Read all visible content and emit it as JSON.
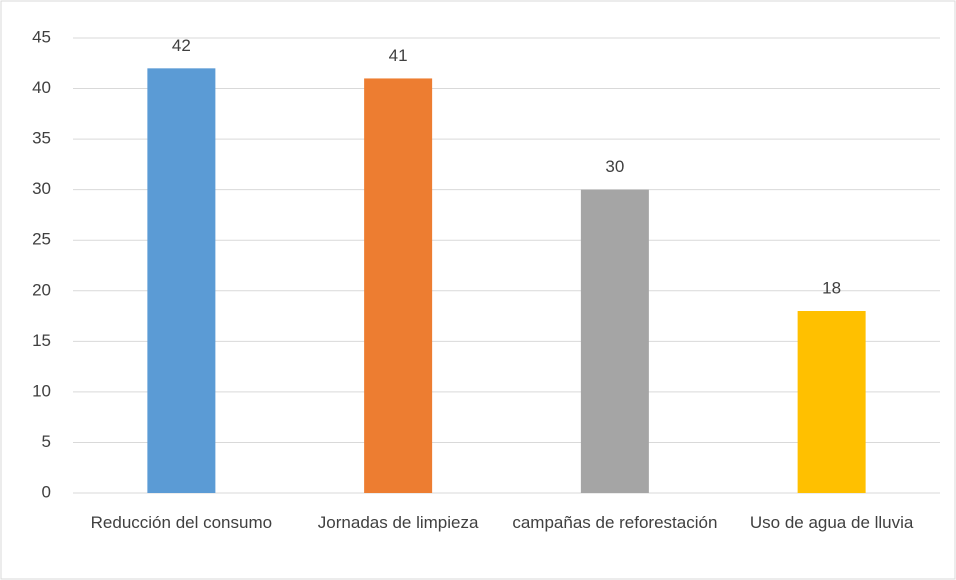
{
  "chart_data": {
    "type": "bar",
    "categories": [
      "Reducción del consumo",
      "Jornadas de limpieza",
      "campañas de reforestación",
      "Uso de agua de lluvia"
    ],
    "values": [
      42,
      41,
      30,
      18
    ],
    "colors": [
      "#5b9bd5",
      "#ed7d31",
      "#a5a5a5",
      "#ffc000"
    ],
    "ylim": [
      0,
      45
    ],
    "yticks": [
      0,
      5,
      10,
      15,
      20,
      25,
      30,
      35,
      40,
      45
    ],
    "grid": true
  }
}
